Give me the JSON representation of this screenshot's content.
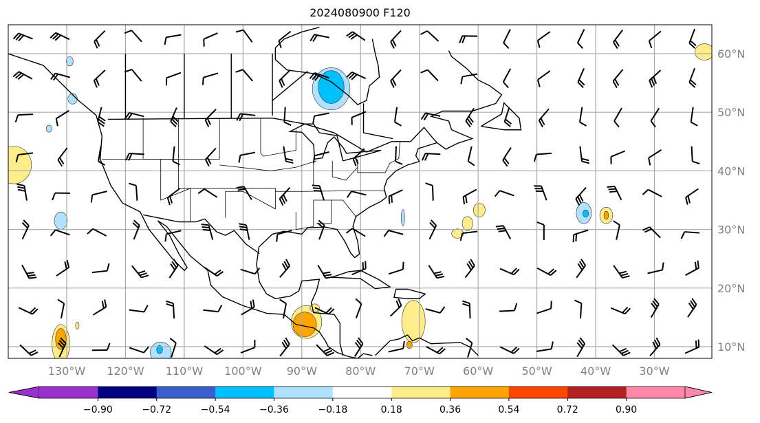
{
  "title": "2024080900 F120",
  "map": {
    "lon_range": [
      -140,
      -20
    ],
    "lat_range": [
      8,
      65
    ],
    "lon_labels": [
      {
        "lon": -130,
        "text": "130°W"
      },
      {
        "lon": -120,
        "text": "120°W"
      },
      {
        "lon": -110,
        "text": "110°W"
      },
      {
        "lon": -100,
        "text": "100°W"
      },
      {
        "lon": -90,
        "text": "90°W"
      },
      {
        "lon": -80,
        "text": "80°W"
      },
      {
        "lon": -70,
        "text": "70°W"
      },
      {
        "lon": -60,
        "text": "60°W"
      },
      {
        "lon": -50,
        "text": "50°W"
      },
      {
        "lon": -40,
        "text": "40°W"
      },
      {
        "lon": -30,
        "text": "30°W"
      }
    ],
    "lat_labels": [
      {
        "lat": 60,
        "text": "60°N"
      },
      {
        "lat": 50,
        "text": "50°N"
      },
      {
        "lat": 40,
        "text": "40°N"
      },
      {
        "lat": 30,
        "text": "30°N"
      },
      {
        "lat": 20,
        "text": "20°N"
      },
      {
        "lat": 10,
        "text": "10°N"
      }
    ],
    "shaded_regions": [
      {
        "lon": -85,
        "lat": 54,
        "rlon": 3.2,
        "rlat": 3.6,
        "level": -0.18
      },
      {
        "lon": -85,
        "lat": 54.3,
        "rlon": 2.2,
        "rlat": 2.8,
        "level": -0.36
      },
      {
        "lon": -129.5,
        "lat": 58.7,
        "rlon": 0.6,
        "rlat": 0.8,
        "level": -0.18
      },
      {
        "lon": -129,
        "lat": 52.3,
        "rlon": 0.8,
        "rlat": 0.9,
        "level": -0.18
      },
      {
        "lon": -133,
        "lat": 47.2,
        "rlon": 0.5,
        "rlat": 0.6,
        "level": -0.18
      },
      {
        "lon": -131,
        "lat": 31.5,
        "rlon": 1.1,
        "rlat": 1.5,
        "level": -0.18
      },
      {
        "lon": -139,
        "lat": 41,
        "rlon": 3,
        "rlat": 3.2,
        "level": 0.18
      },
      {
        "lon": -131,
        "lat": 10.5,
        "rlon": 1.5,
        "rlat": 3.3,
        "level": 0.18
      },
      {
        "lon": -131,
        "lat": 11.3,
        "rlon": 0.9,
        "rlat": 1.8,
        "level": 0.36
      },
      {
        "lon": -128.2,
        "lat": 13.6,
        "rlon": 0.3,
        "rlat": 0.6,
        "level": 0.18
      },
      {
        "lon": -114,
        "lat": 9,
        "rlon": 1.8,
        "rlat": 1.8,
        "level": -0.18
      },
      {
        "lon": -114.2,
        "lat": 9.5,
        "rlon": 0.5,
        "rlat": 0.7,
        "level": -0.36
      },
      {
        "lon": -89.2,
        "lat": 14.2,
        "rlon": 2.6,
        "rlat": 2.8,
        "level": 0.18
      },
      {
        "lon": -89.5,
        "lat": 13.8,
        "rlon": 2,
        "rlat": 2.1,
        "level": 0.36
      },
      {
        "lon": -87.8,
        "lat": 16.6,
        "rlon": 0.8,
        "rlat": 0.7,
        "level": 0.18
      },
      {
        "lon": -71,
        "lat": 14.3,
        "rlon": 2,
        "rlat": 3.6,
        "level": 0.18
      },
      {
        "lon": -71.7,
        "lat": 10.3,
        "rlon": 0.5,
        "rlat": 0.6,
        "level": 0.36
      },
      {
        "lon": -59.8,
        "lat": 33.3,
        "rlon": 1,
        "rlat": 1.2,
        "level": 0.18
      },
      {
        "lon": -61.8,
        "lat": 31,
        "rlon": 0.9,
        "rlat": 1.2,
        "level": 0.18
      },
      {
        "lon": -63.5,
        "lat": 29.3,
        "rlon": 1,
        "rlat": 0.8,
        "level": 0.18
      },
      {
        "lon": -42,
        "lat": 32.8,
        "rlon": 1.3,
        "rlat": 1.8,
        "level": -0.18
      },
      {
        "lon": -41.7,
        "lat": 32.7,
        "rlon": 0.5,
        "rlat": 0.6,
        "level": -0.36
      },
      {
        "lon": -38.2,
        "lat": 32.4,
        "rlon": 1.1,
        "rlat": 1.4,
        "level": 0.18
      },
      {
        "lon": -38.2,
        "lat": 32.4,
        "rlon": 0.4,
        "rlat": 0.7,
        "level": 0.36
      },
      {
        "lon": -72.8,
        "lat": 32,
        "rlon": 0.3,
        "rlat": 1.4,
        "level": -0.18
      },
      {
        "lon": -21.5,
        "lat": 60.3,
        "rlon": 1.6,
        "rlat": 1.4,
        "level": 0.18
      }
    ]
  },
  "colorbar": {
    "colors": [
      "#9932CC",
      "#000080",
      "#3A5FCD",
      "#00BFFF",
      "#B0E2FF",
      "#FFFFFF",
      "#FFEC8B",
      "#FFA500",
      "#FF4500",
      "#B22222",
      "#FF88AA"
    ],
    "under_color": "#9932CC",
    "over_color": "#FF88AA",
    "ticks": [
      "−0.90",
      "−0.72",
      "−0.54",
      "−0.36",
      "−0.18",
      "0.18",
      "0.36",
      "0.54",
      "0.72",
      "0.90"
    ],
    "levels": [
      -0.9,
      -0.72,
      -0.54,
      -0.36,
      -0.18,
      0.18,
      0.36,
      0.54,
      0.72,
      0.9
    ]
  }
}
